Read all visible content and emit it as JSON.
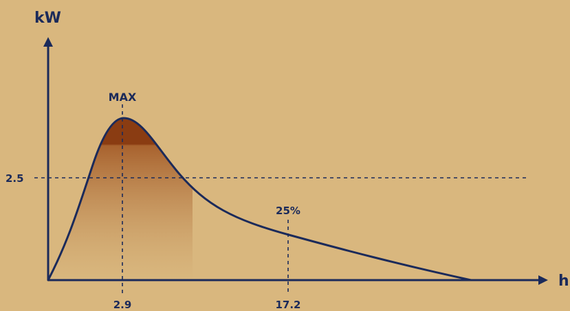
{
  "chart_data": {
    "type": "area",
    "title": "",
    "xlabel": "h",
    "ylabel": "kW",
    "grid": false,
    "reference_lines": {
      "horizontal": {
        "value": 2.5,
        "label": "2.5"
      },
      "vertical": [
        {
          "x": 2.9,
          "tick_label": "2.9",
          "annotation": "MAX"
        },
        {
          "x": 17.2,
          "tick_label": "17.2",
          "annotation": "25%"
        }
      ]
    },
    "colors": {
      "background": "#d9b77e",
      "line": "#1b2a5a",
      "fill_top": "#8a3c12",
      "fill_bottom": "#d9b77e"
    }
  }
}
